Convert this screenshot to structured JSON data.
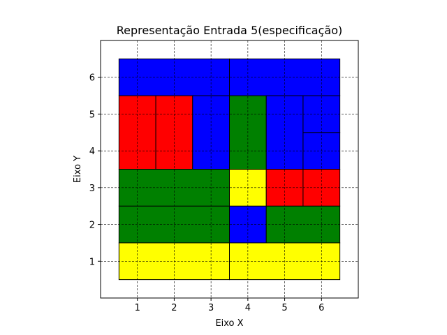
{
  "chart_data": {
    "type": "rectangle_packing",
    "title": "Representação Entrada 5(especificação)",
    "xlabel": "Eixo X",
    "ylabel": "Eixo Y",
    "xlim": [
      0,
      7
    ],
    "ylim": [
      0,
      7
    ],
    "xticks": [
      "1",
      "2",
      "3",
      "4",
      "5",
      "6"
    ],
    "yticks": [
      "1",
      "2",
      "3",
      "4",
      "5",
      "6"
    ],
    "grid": true,
    "grid_style": "dashed",
    "colors": {
      "red": "#ff0000",
      "green": "#008000",
      "blue": "#0000ff",
      "yellow": "#ffff00"
    },
    "rectangles": [
      {
        "x0": 0.5,
        "y0": 0.5,
        "x1": 3.5,
        "y1": 1.5,
        "color": "yellow"
      },
      {
        "x0": 3.5,
        "y0": 0.5,
        "x1": 6.5,
        "y1": 1.5,
        "color": "yellow"
      },
      {
        "x0": 0.5,
        "y0": 1.5,
        "x1": 3.5,
        "y1": 2.5,
        "color": "green"
      },
      {
        "x0": 3.5,
        "y0": 1.5,
        "x1": 4.5,
        "y1": 2.5,
        "color": "blue"
      },
      {
        "x0": 4.5,
        "y0": 1.5,
        "x1": 6.5,
        "y1": 2.5,
        "color": "green"
      },
      {
        "x0": 0.5,
        "y0": 2.5,
        "x1": 3.5,
        "y1": 3.5,
        "color": "green"
      },
      {
        "x0": 3.5,
        "y0": 2.5,
        "x1": 4.5,
        "y1": 3.5,
        "color": "yellow"
      },
      {
        "x0": 4.5,
        "y0": 2.5,
        "x1": 5.5,
        "y1": 3.5,
        "color": "red"
      },
      {
        "x0": 5.5,
        "y0": 2.5,
        "x1": 6.5,
        "y1": 3.5,
        "color": "red"
      },
      {
        "x0": 0.5,
        "y0": 3.5,
        "x1": 1.5,
        "y1": 5.5,
        "color": "red"
      },
      {
        "x0": 1.5,
        "y0": 3.5,
        "x1": 2.5,
        "y1": 5.5,
        "color": "red"
      },
      {
        "x0": 2.5,
        "y0": 3.5,
        "x1": 3.5,
        "y1": 5.5,
        "color": "blue"
      },
      {
        "x0": 3.5,
        "y0": 3.5,
        "x1": 4.5,
        "y1": 5.5,
        "color": "green"
      },
      {
        "x0": 4.5,
        "y0": 3.5,
        "x1": 5.5,
        "y1": 5.5,
        "color": "blue"
      },
      {
        "x0": 5.5,
        "y0": 3.5,
        "x1": 6.5,
        "y1": 4.5,
        "color": "blue"
      },
      {
        "x0": 5.5,
        "y0": 4.5,
        "x1": 6.5,
        "y1": 5.5,
        "color": "blue"
      },
      {
        "x0": 0.5,
        "y0": 5.5,
        "x1": 3.5,
        "y1": 6.5,
        "color": "blue"
      },
      {
        "x0": 3.5,
        "y0": 5.5,
        "x1": 6.5,
        "y1": 6.5,
        "color": "blue"
      }
    ]
  }
}
